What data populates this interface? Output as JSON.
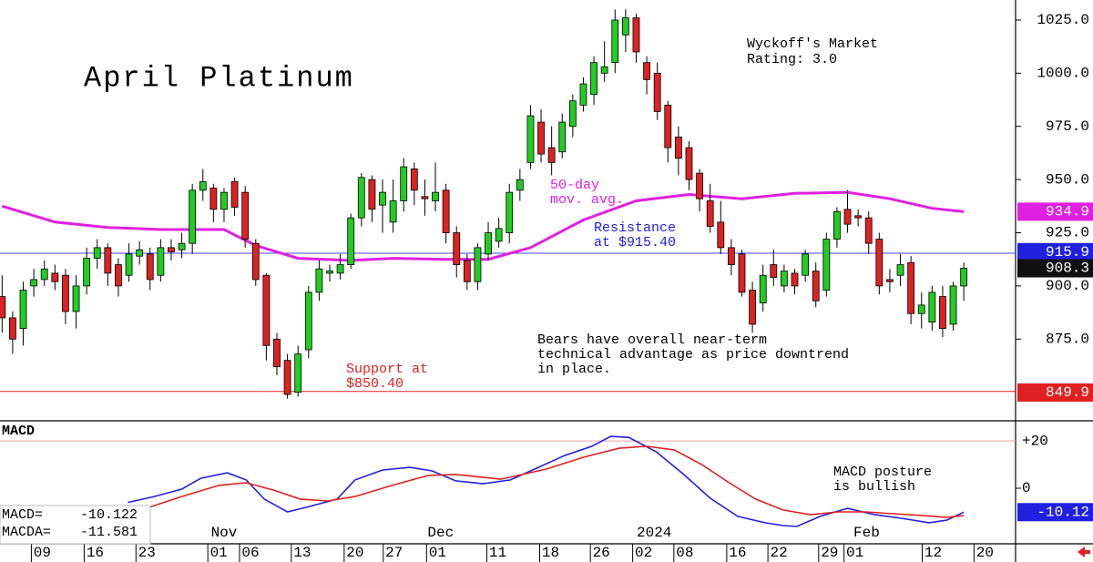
{
  "chart_data": [
    {
      "type": "candlestick",
      "title": "April Platinum",
      "xlim": [
        -0.2,
        95.9
      ],
      "ylim": [
        836.6,
        1034.4
      ],
      "yticks": [
        {
          "value": 1025,
          "label": "1025.0"
        },
        {
          "value": 1000,
          "label": "1000.0"
        },
        {
          "value": 975,
          "label": "975.0"
        },
        {
          "value": 950,
          "label": "950.0"
        },
        {
          "value": 925,
          "label": "925.0"
        },
        {
          "value": 900,
          "label": "900.0"
        },
        {
          "value": 875,
          "label": "875.0"
        }
      ],
      "up_color": "#22cc22",
      "down_color": "#dd2222",
      "open": [
        895,
        885,
        880,
        900,
        903,
        906,
        905,
        888,
        900,
        913,
        918,
        910,
        905,
        914,
        915,
        905,
        918,
        917,
        920,
        945,
        946,
        936,
        949,
        944,
        920,
        905,
        875,
        865,
        850,
        870,
        897,
        906,
        906,
        910,
        932,
        950,
        938,
        930,
        940,
        955,
        942,
        940,
        945,
        925,
        912,
        902,
        915,
        921,
        925,
        945,
        958,
        977,
        965,
        963,
        975,
        985,
        990,
        1000,
        1005,
        1018,
        1026,
        1005,
        1000,
        985,
        970,
        965,
        953,
        940,
        930,
        918,
        915,
        898,
        892,
        910,
        900,
        906,
        905,
        907,
        898,
        922,
        936,
        933,
        932,
        922,
        903,
        905,
        911,
        887,
        883,
        895,
        882,
        900
      ],
      "high": [
        905,
        888,
        902,
        908,
        912,
        910,
        908,
        905,
        918,
        922,
        920,
        913,
        920,
        921,
        918,
        922,
        922,
        925,
        948,
        955,
        948,
        946,
        951,
        947,
        922,
        906,
        878,
        868,
        872,
        900,
        912,
        910,
        915,
        934,
        953,
        952,
        950,
        950,
        960,
        958,
        950,
        958,
        948,
        928,
        915,
        920,
        930,
        932,
        948,
        955,
        985,
        983,
        975,
        981,
        990,
        998,
        1008,
        1015,
        1030,
        1030,
        1028,
        1008,
        1005,
        987,
        975,
        968,
        955,
        948,
        940,
        922,
        917,
        902,
        910,
        917,
        910,
        908,
        917,
        911,
        925,
        937,
        945,
        936,
        935,
        925,
        908,
        915,
        914,
        897,
        900,
        900,
        902,
        911
      ],
      "low": [
        878,
        868,
        872,
        895,
        900,
        898,
        882,
        880,
        896,
        908,
        900,
        895,
        902,
        910,
        898,
        902,
        912,
        913,
        915,
        940,
        930,
        930,
        933,
        918,
        900,
        865,
        858,
        847,
        848,
        866,
        893,
        902,
        903,
        908,
        928,
        930,
        925,
        925,
        935,
        938,
        933,
        935,
        920,
        904,
        898,
        898,
        912,
        918,
        920,
        940,
        955,
        958,
        952,
        960,
        970,
        982,
        985,
        996,
        1000,
        1010,
        1005,
        990,
        978,
        958,
        952,
        945,
        935,
        925,
        915,
        905,
        895,
        878,
        888,
        900,
        897,
        896,
        902,
        890,
        895,
        918,
        925,
        928,
        915,
        896,
        897,
        900,
        882,
        880,
        879,
        876,
        879,
        893
      ],
      "close": [
        885,
        875,
        898,
        903,
        908,
        902,
        888,
        900,
        913,
        918,
        906,
        900,
        915,
        917,
        903,
        918,
        916,
        920,
        945,
        949,
        936,
        944,
        937,
        922,
        903,
        872,
        862,
        849,
        868,
        897,
        908,
        907,
        910,
        932,
        951,
        936,
        944,
        940,
        956,
        945,
        941,
        944,
        925,
        910,
        902,
        918,
        925,
        927,
        944,
        950,
        980,
        962,
        958,
        977,
        987,
        995,
        1005,
        1003,
        1025,
        1026,
        1010,
        997,
        982,
        965,
        960,
        950,
        941,
        928,
        918,
        910,
        897,
        882,
        905,
        904,
        907,
        900,
        915,
        893,
        922,
        935,
        929,
        932,
        920,
        900,
        902,
        910,
        887,
        891,
        897,
        880,
        900,
        908.3
      ],
      "moving_average": {
        "color": "#e020e0",
        "x": [
          0,
          5,
          10,
          15,
          21,
          24,
          28,
          33,
          37,
          42,
          46,
          50,
          55,
          60,
          65,
          70,
          75,
          80,
          84,
          88,
          91
        ],
        "values": [
          937.5,
          930,
          927.5,
          926.5,
          926.5,
          919,
          913,
          912,
          913,
          912.5,
          912.5,
          918,
          931,
          940,
          943,
          941,
          943.5,
          944,
          941,
          936.5,
          934.9
        ]
      },
      "hlines": [
        {
          "value": 915.4,
          "color": "#4444ff"
        },
        {
          "value": 850.4,
          "color": "#e02020"
        }
      ],
      "price_tags": [
        {
          "value": 934.9,
          "color": "#e020e0"
        },
        {
          "value": 915.9,
          "color": "#2020e0"
        },
        {
          "value": 908.3,
          "color": "#111111"
        },
        {
          "value": 849.9,
          "color": "#e02020"
        }
      ],
      "annotations": [
        {
          "lines": [
            "Wyckoff's Market",
            "Rating: 3.0"
          ]
        },
        {
          "lines": [
            "50-day",
            "mov. avg."
          ]
        },
        {
          "lines": [
            "Resistance",
            "at $915.40"
          ]
        },
        {
          "lines": [
            "Support at",
            "$850.40"
          ]
        },
        {
          "lines": [
            "Bears have overall near-term",
            "technical advantage as price downtrend",
            "in place."
          ]
        }
      ]
    },
    {
      "type": "line",
      "title": "MACD",
      "xlim": [
        -0.2,
        95.9
      ],
      "ylim": [
        -23.5,
        28.5
      ],
      "yticks": [
        {
          "value": 20,
          "label": "+20"
        },
        0
      ],
      "grid_color": "#f0a0a0",
      "xticks": [
        {
          "value": 3.8,
          "label": "09"
        },
        {
          "value": 8.8,
          "label": "16"
        },
        {
          "value": 13.7,
          "label": "23"
        },
        {
          "value": 20.5,
          "label": "01"
        },
        {
          "value": 23.5,
          "label": "06"
        },
        {
          "value": 28.4,
          "label": "13"
        },
        {
          "value": 33.4,
          "label": "20"
        },
        {
          "value": 37.1,
          "label": "27"
        },
        {
          "value": 41.2,
          "label": "01"
        },
        {
          "value": 46.9,
          "label": "11"
        },
        {
          "value": 51.9,
          "label": "18"
        },
        {
          "value": 56.7,
          "label": "26"
        },
        {
          "value": 60.7,
          "label": "02"
        },
        {
          "value": 64.6,
          "label": "08"
        },
        {
          "value": 69.6,
          "label": "16"
        },
        {
          "value": 73.5,
          "label": "22"
        },
        {
          "value": 78.3,
          "label": "29"
        },
        {
          "value": 80.7,
          "label": "01"
        },
        {
          "value": 88.1,
          "label": "12"
        },
        {
          "value": 93.0,
          "label": "20"
        }
      ],
      "month_labels": [
        {
          "value": 21.0,
          "label": "Nov"
        },
        {
          "value": 41.5,
          "label": "Dec"
        },
        {
          "value": 61.7,
          "label": "2024"
        },
        {
          "value": 81.8,
          "label": "Feb"
        }
      ],
      "series": [
        {
          "name": "MACD=",
          "color": "#2020e0",
          "last_value": -10.122,
          "tag": -10.12,
          "x": [
            11.9,
            14.4,
            17.0,
            18.8,
            21.3,
            23.1,
            24.8,
            27.0,
            29.1,
            31.7,
            33.4,
            36.0,
            38.6,
            40.7,
            42.9,
            45.5,
            48.1,
            49.8,
            53.2,
            55.8,
            57.6,
            59.3,
            61.9,
            64.4,
            67.0,
            69.6,
            72.2,
            73.9,
            75.2,
            77.4,
            80.0,
            82.6,
            85.1,
            87.7,
            89.4,
            91.0
          ],
          "values": [
            -6,
            -3.5,
            -0.4,
            4.2,
            6.5,
            3.5,
            -4.6,
            -10,
            -7.7,
            -4.6,
            3.5,
            7.7,
            8.8,
            7.3,
            3.1,
            1.9,
            3.5,
            6.9,
            13.8,
            17.7,
            21.9,
            21.5,
            15.4,
            6.2,
            -4.2,
            -11.9,
            -14.6,
            -15.8,
            -16.2,
            -11.9,
            -8.5,
            -11.2,
            -12.7,
            -14.6,
            -13.5,
            -10.12
          ]
        },
        {
          "name": "MACDA=",
          "color": "#e02020",
          "last_value": -11.581,
          "x": [
            13.6,
            17.0,
            20.5,
            23.1,
            25.7,
            28.2,
            30.8,
            33.4,
            36.9,
            40.3,
            42.9,
            47.2,
            51.5,
            55.0,
            58.4,
            61.0,
            63.6,
            66.2,
            68.8,
            71.3,
            73.9,
            76.5,
            79.1,
            81.7,
            84.3,
            86.9,
            89.4,
            91.0
          ],
          "values": [
            -8.5,
            -3.5,
            1.2,
            2.3,
            -0.8,
            -4.6,
            -5.4,
            -3.5,
            1.2,
            5.4,
            5.8,
            3.8,
            8.1,
            13.1,
            16.9,
            17.7,
            16.2,
            10,
            2.3,
            -4.6,
            -9.2,
            -11.2,
            -10,
            -10,
            -10.8,
            -11.5,
            -12.3,
            -11.581
          ]
        }
      ],
      "annotations": [
        {
          "lines": [
            "MACD posture",
            "is bullish"
          ]
        }
      ]
    }
  ]
}
